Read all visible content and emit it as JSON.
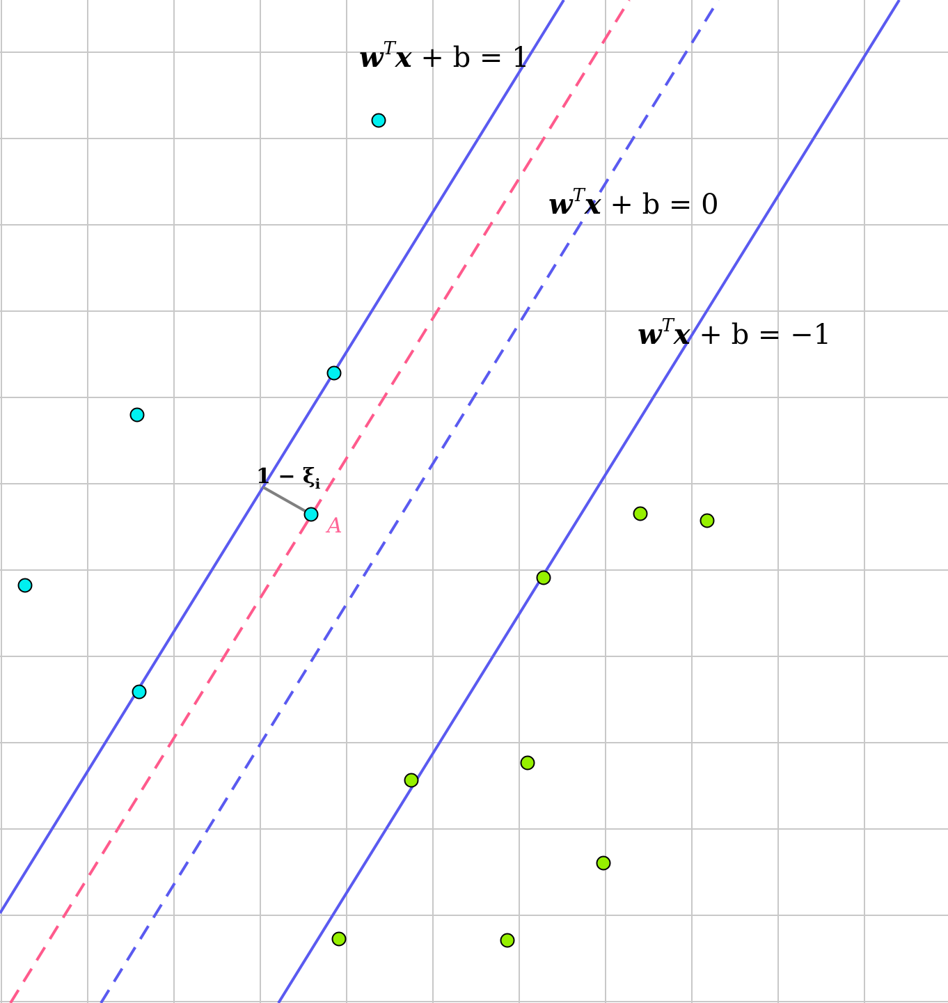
{
  "colors": {
    "background": "#ffffff",
    "grid": "#c8c8c8",
    "margin_line": "#5a5af0",
    "true_boundary": "#ff5a8c",
    "class_positive": "#00f0f0",
    "class_negative": "#96f000",
    "slack_segment": "#808080",
    "point_label": "#ff6496"
  },
  "labels": {
    "plane_pos": {
      "lhs_w": "w",
      "sup": "T",
      "lhs_x": "x",
      "rest": " + b = 1"
    },
    "plane_zero": {
      "lhs_w": "w",
      "sup": "T",
      "lhs_x": "x",
      "rest": " + b = 0"
    },
    "plane_neg": {
      "lhs_w": "w",
      "sup": "T",
      "lhs_x": "x",
      "rest": " + b = −1"
    },
    "slack": {
      "prefix": "1 − ξ",
      "sub": "i"
    },
    "point_a": "A"
  }
}
